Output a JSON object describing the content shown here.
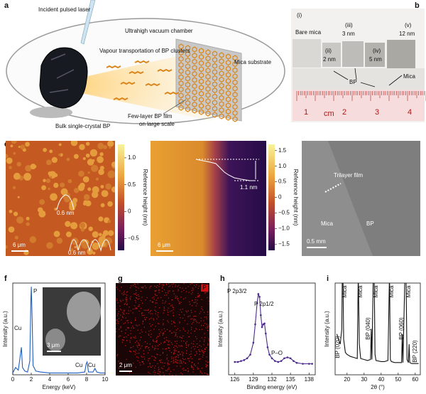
{
  "figure": {
    "a": {
      "label": "a",
      "texts": [
        "Incident pulsed laser",
        "Ultrahigh vacuum chamber",
        "Vapour transportation of BP clusters",
        "Mica substrate",
        "Bulk single-crystal BP",
        "Few-layer BP film",
        "on large scale"
      ]
    },
    "b": {
      "label": "b",
      "samples": [
        [
          "(i)",
          "Bare mica"
        ],
        [
          "(ii)",
          "2 nm"
        ],
        [
          "(iii)",
          "3 nm"
        ],
        [
          "(iv)",
          "5 nm"
        ],
        [
          "(v)",
          "12 nm"
        ]
      ],
      "arrows": [
        "BP",
        "Mica"
      ],
      "ruler_unit": "cm",
      "ruler_numbers": [
        1,
        2,
        3,
        4
      ]
    },
    "c": {
      "label": "c",
      "colorbar": {
        "title": "Reference height (nm)",
        "lim": [
          -0.72,
          1.25
        ],
        "ticks": [
          {
            "value": 1,
            "label": "1.0"
          },
          0.5,
          0,
          {
            "value": -0.5,
            "label": "−0.5"
          }
        ]
      },
      "annotations": [
        "0.6 nm",
        "0.6 nm"
      ],
      "scale_bar": "6 μm"
    },
    "d": {
      "label": "d",
      "colorbar": {
        "title": "Reference height (nm)",
        "lim": [
          -1.7,
          1.7
        ],
        "ticks": [
          1.5,
          {
            "value": 1,
            "label": "1.0"
          },
          0.5,
          0,
          {
            "value": -0.5,
            "label": "−0.5"
          },
          {
            "value": -1,
            "label": "−1.0"
          },
          {
            "value": -1.5,
            "label": "−1.5"
          }
        ]
      },
      "annotations": [
        "1.1 nm"
      ],
      "scale_bar": "6 μm"
    },
    "e": {
      "label": "e",
      "texts": [
        "Trilayer film",
        "Mica",
        "BP"
      ],
      "scale_bar": "0.5 mm"
    },
    "g": {
      "label": "g",
      "element": "P",
      "scale_bar": "2 μm"
    }
  },
  "chart_data": [
    {
      "type": "line",
      "label": "f",
      "color": "#1f5fbf",
      "x": [
        0,
        0.3,
        0.6,
        0.8,
        0.93,
        1.05,
        1.3,
        1.6,
        1.85,
        1.95,
        2.01,
        2.1,
        2.2,
        2.5,
        3,
        4,
        5,
        6,
        7,
        7.8,
        7.95,
        8.05,
        8.2,
        8.7,
        8.9,
        9.1,
        9.5,
        10
      ],
      "values": [
        2,
        8,
        5,
        20,
        30,
        8,
        4,
        3,
        15,
        80,
        96,
        60,
        10,
        4,
        3,
        2,
        2,
        2,
        2,
        3,
        12,
        14,
        3,
        3,
        7,
        3,
        2,
        2
      ],
      "xlim": [
        0,
        10
      ],
      "xticks": [
        0,
        2,
        4,
        6,
        8,
        10
      ],
      "ylim": [
        0,
        100
      ],
      "xlabel": "Energy (keV)",
      "ylabel": "Intensity (a.u.)",
      "annotations": [
        "Cu",
        "P",
        "Cu",
        "Cu"
      ],
      "inset_scale_bar": "3 μm"
    },
    {
      "type": "line",
      "label": "h",
      "color": "#4b2a8c",
      "x": [
        126,
        126.5,
        127,
        127.5,
        128,
        128.5,
        129,
        129.3,
        129.6,
        129.8,
        130,
        130.2,
        130.4,
        130.6,
        130.8,
        131,
        131.3,
        131.6,
        132,
        132.5,
        133,
        133.5,
        134,
        134.5,
        135,
        135.5,
        136,
        137,
        138,
        138.5
      ],
      "values": [
        14,
        14,
        15,
        16,
        18,
        22,
        35,
        55,
        78,
        88,
        85,
        65,
        52,
        55,
        56,
        45,
        30,
        22,
        18,
        15,
        14,
        15,
        18,
        19,
        18,
        15,
        13,
        12,
        12,
        12
      ],
      "xlim": [
        125,
        139
      ],
      "xticks": [
        126,
        129,
        132,
        135,
        138
      ],
      "ylim": [
        0,
        100
      ],
      "xlabel": "Binding energy (eV)",
      "ylabel": "Intensity (a.u.)",
      "annotations": [
        "P 2p3/2",
        "P 2p1/2",
        "P–O"
      ]
    },
    {
      "type": "line",
      "label": "i",
      "color": "#111111",
      "x": [
        14,
        16,
        16.9,
        17.2,
        17.6,
        18,
        19,
        20,
        22,
        24,
        26,
        26.6,
        27.2,
        28,
        30,
        32,
        33.8,
        34.2,
        34.6,
        35.4,
        35.9,
        36.4,
        37,
        40,
        42,
        44,
        44.9,
        45.4,
        46,
        48,
        50,
        52,
        52.4,
        52.8,
        54,
        54.6,
        55.2,
        56,
        56.4,
        56.8,
        58,
        60,
        62
      ],
      "values": [
        40,
        30,
        45,
        100,
        100,
        35,
        22,
        20,
        18,
        17,
        16,
        100,
        30,
        16,
        15,
        14,
        15,
        45,
        15,
        100,
        100,
        20,
        14,
        13,
        13,
        14,
        100,
        15,
        13,
        12,
        12,
        12,
        40,
        12,
        100,
        100,
        15,
        12,
        30,
        12,
        11,
        11,
        11
      ],
      "xlim": [
        13,
        63
      ],
      "xticks": [
        20,
        30,
        40,
        50,
        60
      ],
      "ylim": [
        0,
        90
      ],
      "xlabel": "2θ (°)",
      "ylabel": "Intensity (a.u.)",
      "annotations": [
        "Mica",
        "Mica",
        "Mica",
        "Mica",
        "Mica",
        "BP (020)",
        "BP (040)",
        "BP (060)",
        "BP (220)"
      ]
    }
  ]
}
